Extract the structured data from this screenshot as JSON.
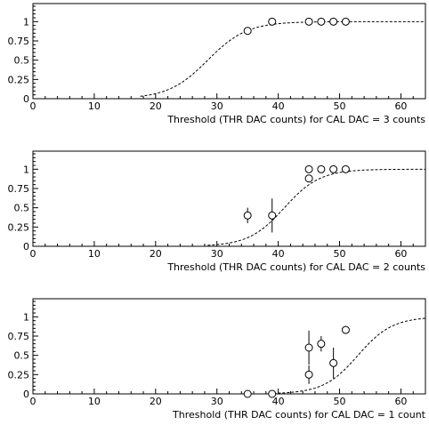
{
  "chart_data": [
    {
      "type": "scatter",
      "title": "",
      "xlabel": "Threshold (THR DAC counts) for CAL DAC = 3 counts",
      "ylabel": "",
      "xlim": [
        0,
        64
      ],
      "ylim": [
        0,
        1.2
      ],
      "xticks": [
        0,
        10,
        20,
        30,
        40,
        50,
        60
      ],
      "yticks": [
        0,
        0.25,
        0.5,
        0.75,
        1
      ],
      "ytick_labels": [
        "0",
        "0.25",
        "0.5",
        "0.75",
        "1"
      ],
      "grid": false,
      "points": [
        {
          "x": 35,
          "y": 0.88,
          "err": 0.04
        },
        {
          "x": 39,
          "y": 1.0,
          "err": 0.0
        },
        {
          "x": 45,
          "y": 1.0,
          "err": 0.0
        },
        {
          "x": 47,
          "y": 1.0,
          "err": 0.0
        },
        {
          "x": 49,
          "y": 1.0,
          "err": 0.0
        },
        {
          "x": 51,
          "y": 1.0,
          "err": 0.0
        }
      ],
      "fit_curve": {
        "style": "dashed",
        "type": "sigmoid",
        "midpoint": 28.5,
        "width": 3.2,
        "x_range": [
          17.5,
          64
        ]
      }
    },
    {
      "type": "scatter",
      "title": "",
      "xlabel": "Threshold (THR DAC counts) for CAL DAC = 2 counts",
      "ylabel": "",
      "xlim": [
        0,
        64
      ],
      "ylim": [
        0,
        1.2
      ],
      "xticks": [
        0,
        10,
        20,
        30,
        40,
        50,
        60
      ],
      "yticks": [
        0,
        0.25,
        0.5,
        0.75,
        1
      ],
      "ytick_labels": [
        "0",
        "0.25",
        "0.5",
        "0.75",
        "1"
      ],
      "grid": false,
      "points": [
        {
          "x": 35,
          "y": 0.4,
          "err": 0.1
        },
        {
          "x": 39,
          "y": 0.4,
          "err": 0.22
        },
        {
          "x": 45,
          "y": 0.88,
          "err": 0.05
        },
        {
          "x": 45,
          "y": 1.0,
          "err": 0.0
        },
        {
          "x": 47,
          "y": 1.0,
          "err": 0.0
        },
        {
          "x": 49,
          "y": 1.0,
          "err": 0.0
        },
        {
          "x": 51,
          "y": 1.0,
          "err": 0.0
        }
      ],
      "fit_curve": {
        "style": "dashed",
        "type": "sigmoid",
        "midpoint": 41.0,
        "width": 2.9,
        "x_range": [
          28.5,
          64
        ]
      }
    },
    {
      "type": "scatter",
      "title": "",
      "xlabel": "Threshold (THR DAC counts) for CAL DAC = 1 count",
      "ylabel": "",
      "xlim": [
        0,
        64
      ],
      "ylim": [
        0,
        1.2
      ],
      "xticks": [
        0,
        10,
        20,
        30,
        40,
        50,
        60
      ],
      "yticks": [
        0,
        0.25,
        0.5,
        0.75,
        1
      ],
      "ytick_labels": [
        "0",
        "0.25",
        "0.5",
        "0.75",
        "1"
      ],
      "grid": false,
      "points": [
        {
          "x": 35,
          "y": 0.0,
          "err": 0.0
        },
        {
          "x": 39,
          "y": 0.0,
          "err": 0.0
        },
        {
          "x": 45,
          "y": 0.6,
          "err": 0.22
        },
        {
          "x": 45,
          "y": 0.25,
          "err": 0.12
        },
        {
          "x": 47,
          "y": 0.65,
          "err": 0.1
        },
        {
          "x": 49,
          "y": 0.4,
          "err": 0.2
        },
        {
          "x": 51,
          "y": 0.83,
          "err": 0.05
        }
      ],
      "fit_curve": {
        "style": "dashed",
        "type": "sigmoid",
        "midpoint": 53.0,
        "width": 2.8,
        "x_range": [
          38.5,
          64
        ]
      }
    }
  ]
}
